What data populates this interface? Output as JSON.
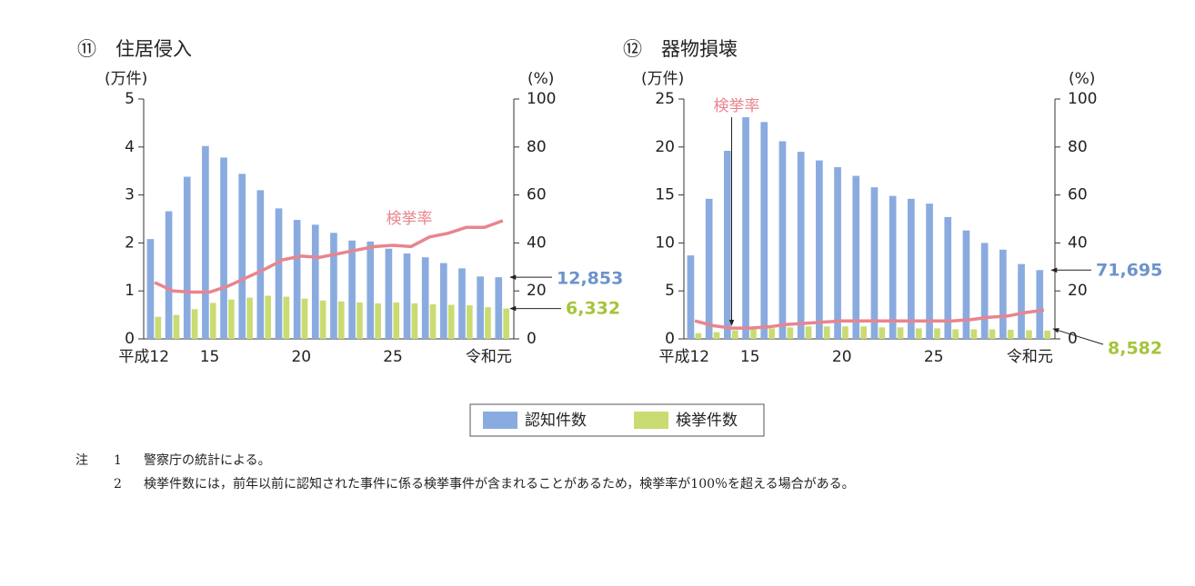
{
  "chart_data": [
    {
      "type": "bar",
      "title": "⑪　住居侵入",
      "y_label": "(万件)",
      "y2_label": "(%)",
      "categories": [
        "平成12",
        null,
        null,
        "15",
        null,
        null,
        null,
        null,
        "20",
        null,
        null,
        null,
        null,
        "25",
        null,
        null,
        null,
        null,
        null,
        "令和元"
      ],
      "ylim": [
        0,
        5
      ],
      "yticks": [
        0,
        1,
        2,
        3,
        4,
        5
      ],
      "y2lim": [
        0,
        100
      ],
      "y2ticks": [
        0,
        20,
        40,
        60,
        80,
        100
      ],
      "series": [
        {
          "name": "認知件数",
          "color": "#8aabdf",
          "values": [
            2.08,
            2.66,
            3.38,
            4.02,
            3.78,
            3.44,
            3.1,
            2.72,
            2.48,
            2.38,
            2.21,
            2.05,
            2.03,
            1.88,
            1.78,
            1.7,
            1.58,
            1.47,
            1.3,
            1.2853
          ],
          "value_labels": [
            null,
            null,
            null,
            null,
            null,
            null,
            null,
            null,
            null,
            null,
            null,
            null,
            null,
            null,
            null,
            null,
            null,
            null,
            null,
            "12,853"
          ]
        },
        {
          "name": "検挙件数",
          "color": "#c9dc72",
          "values": [
            0.46,
            0.5,
            0.62,
            0.75,
            0.82,
            0.86,
            0.9,
            0.88,
            0.84,
            0.8,
            0.78,
            0.76,
            0.74,
            0.76,
            0.74,
            0.72,
            0.71,
            0.7,
            0.66,
            0.6332
          ],
          "value_labels": [
            null,
            null,
            null,
            null,
            null,
            null,
            null,
            null,
            null,
            null,
            null,
            null,
            null,
            null,
            null,
            null,
            null,
            null,
            null,
            "6,332"
          ]
        },
        {
          "name": "検挙率",
          "type": "line",
          "axis": "y2",
          "color": "#e8858e",
          "values": [
            23.5,
            20,
            19.5,
            19.5,
            22,
            25.5,
            29,
            33,
            34.5,
            34,
            35.5,
            37,
            38.5,
            39,
            38.5,
            42.5,
            44,
            46.5,
            46.5,
            49.3
          ]
        }
      ]
    },
    {
      "type": "bar",
      "title": "⑫　器物損壊",
      "y_label": "(万件)",
      "y2_label": "(%)",
      "categories": [
        "平成12",
        null,
        null,
        "15",
        null,
        null,
        null,
        null,
        "20",
        null,
        null,
        null,
        null,
        "25",
        null,
        null,
        null,
        null,
        null,
        "令和元"
      ],
      "ylim": [
        0,
        25
      ],
      "yticks": [
        0,
        5,
        10,
        15,
        20,
        25
      ],
      "y2lim": [
        0,
        100
      ],
      "y2ticks": [
        0,
        20,
        40,
        60,
        80,
        100
      ],
      "series": [
        {
          "name": "認知件数",
          "color": "#8aabdf",
          "values": [
            8.7,
            14.6,
            19.6,
            23.1,
            22.6,
            20.6,
            19.5,
            18.6,
            17.9,
            17.0,
            15.8,
            14.9,
            14.6,
            14.1,
            12.7,
            11.3,
            10.0,
            9.3,
            7.8,
            7.1695
          ],
          "value_labels": [
            null,
            null,
            null,
            null,
            null,
            null,
            null,
            null,
            null,
            null,
            null,
            null,
            null,
            null,
            null,
            null,
            null,
            null,
            null,
            "71,695"
          ]
        },
        {
          "name": "検挙件数",
          "color": "#c9dc72",
          "values": [
            0.6,
            0.7,
            0.9,
            1.0,
            1.1,
            1.2,
            1.3,
            1.3,
            1.3,
            1.3,
            1.2,
            1.2,
            1.1,
            1.1,
            1.0,
            1.0,
            1.0,
            0.95,
            0.9,
            0.8582
          ],
          "value_labels": [
            null,
            null,
            null,
            null,
            null,
            null,
            null,
            null,
            null,
            null,
            null,
            null,
            null,
            null,
            null,
            null,
            null,
            null,
            null,
            "8,582"
          ]
        },
        {
          "name": "検挙率",
          "type": "line",
          "axis": "y2",
          "color": "#e8858e",
          "values": [
            7.5,
            5.5,
            4.5,
            4.5,
            5,
            6,
            6.5,
            7,
            7.5,
            7.5,
            7.5,
            7.5,
            7.5,
            7.5,
            7.5,
            8,
            9,
            9.5,
            11,
            12.0
          ]
        }
      ]
    }
  ],
  "notes": {
    "label": "注",
    "items": [
      {
        "number": "1",
        "text": "警察庁の統計による。"
      },
      {
        "number": "2",
        "text": "検挙件数には，前年以前に認知された事件に係る検挙事件が含まれることがあるため，検挙率が100％を超える場合がある。"
      }
    ]
  }
}
